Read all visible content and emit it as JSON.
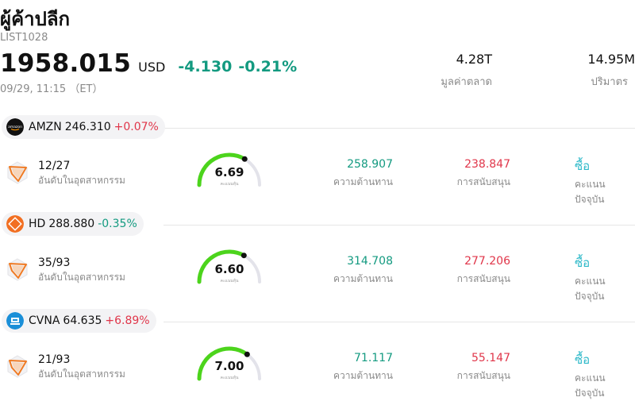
{
  "header": {
    "title": "ผู้ค้าปลีก",
    "code": "LIST1028",
    "price": "1958.015",
    "currency": "USD",
    "change": "-4.130",
    "change_pct": "-0.21%",
    "time": "09/29, 11:15 （ET）",
    "stats": [
      {
        "value": "4.28T",
        "label": "มูลค่าตลาด"
      },
      {
        "value": "14.95M",
        "label": "ปริมาตร"
      }
    ]
  },
  "stocks": [
    {
      "ticker": "AMZN",
      "price": "246.310",
      "change": "+0.07%",
      "direction": "up",
      "logo_icon": "amazon-logo-icon",
      "logo_color": "#111111",
      "rank": "12/27",
      "rank_label": "อันดับในอุตสาหกรรม",
      "score": "6.69",
      "score_label": "คะแนนหุ้น",
      "score_fraction": 0.669,
      "resistance": "258.907",
      "resistance_label": "ความต้านทาน",
      "support": "238.847",
      "support_label": "การสนับสนุน",
      "rating": "ซื้อ",
      "rating_label": "คะแนนปัจจุบัน"
    },
    {
      "ticker": "HD",
      "price": "288.880",
      "change": "-0.35%",
      "direction": "down",
      "logo_icon": "home-depot-logo-icon",
      "logo_color": "#f26f21",
      "rank": "35/93",
      "rank_label": "อันดับในอุตสาหกรรม",
      "score": "6.60",
      "score_label": "คะแนนหุ้น",
      "score_fraction": 0.66,
      "resistance": "314.708",
      "resistance_label": "ความต้านทาน",
      "support": "277.206",
      "support_label": "การสนับสนุน",
      "rating": "ซื้อ",
      "rating_label": "คะแนนปัจจุบัน"
    },
    {
      "ticker": "CVNA",
      "price": "64.635",
      "change": "+6.89%",
      "direction": "up",
      "logo_icon": "carvana-logo-icon",
      "logo_color": "#1a8fd8",
      "rank": "21/93",
      "rank_label": "อันดับในอุตสาหกรรม",
      "score": "7.00",
      "score_label": "คะแนนหุ้น",
      "score_fraction": 0.7,
      "resistance": "71.117",
      "resistance_label": "ความต้านทาน",
      "support": "55.147",
      "support_label": "การสนับสนุน",
      "rating": "ซื้อ",
      "rating_label": "คะแนนปัจจุบัน"
    }
  ]
}
